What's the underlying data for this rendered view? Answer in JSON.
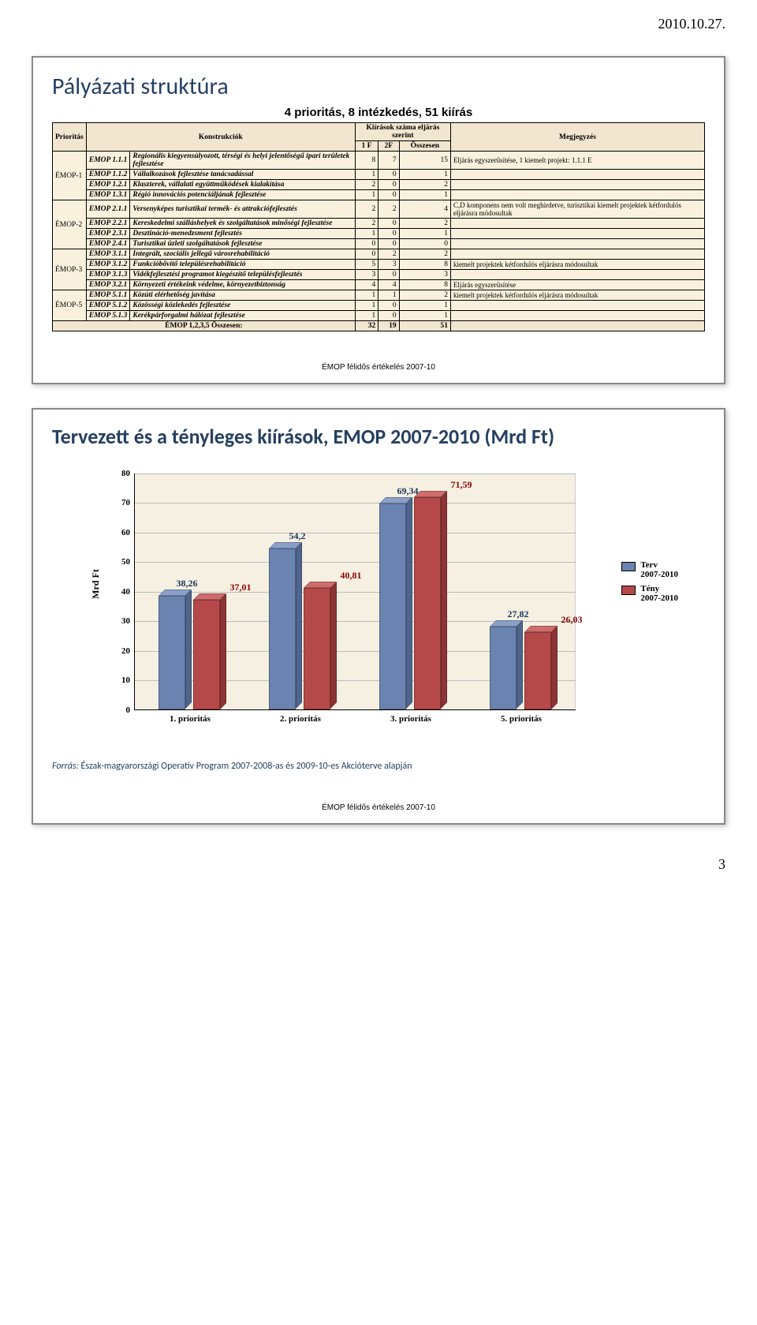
{
  "page_date": "2010.10.27.",
  "page_number": "3",
  "footer_text": "ÉMOP félidős értékelés 2007-10",
  "slide1": {
    "title": "Pályázati struktúra",
    "subtitle": "4 prioritás, 8 intézkedés, 51 kiírás",
    "headers": {
      "prioritas": "Prioritás",
      "konstrukciok": "Konstrukciók",
      "kiiras_group": "Kiírások száma eljárás szerint",
      "c1f": "1 F",
      "c2f": "2F",
      "osszesen": "Összesen",
      "megjegyzes": "Megjegyzés"
    },
    "groups": [
      {
        "prior": "ÉMOP-1",
        "rows": [
          {
            "code": "EMOP 1.1.1",
            "konst": "Regionális kiegyensúlyozott, térségi és helyi jelentőségű ipari területek fejlesztése",
            "v1": "8",
            "v2": "7",
            "sum": "15",
            "note": "Eljárás egyszerűsítése,\n1 kiemelt projekt: 1.1.1 E"
          },
          {
            "code": "EMOP 1.1.2",
            "konst": "Vállalkozások fejlesztése tanácsadással",
            "v1": "1",
            "v2": "0",
            "sum": "1",
            "note": ""
          },
          {
            "code": "EMOP 1.2.1",
            "konst": "Klaszterek, vállalati együttműködések kialakítása",
            "v1": "2",
            "v2": "0",
            "sum": "2",
            "note": ""
          },
          {
            "code": "EMOP 1.3.1",
            "konst": "Régió innovációs potenciáljának fejlesztése",
            "v1": "1",
            "v2": "0",
            "sum": "1",
            "note": ""
          }
        ]
      },
      {
        "prior": "ÉMOP-2",
        "rows": [
          {
            "code": "EMOP 2.1.1",
            "konst": "Versenyképes turisztikai termék- és attrakciófejlesztés",
            "v1": "2",
            "v2": "2",
            "sum": "4",
            "note": "C,D komponens nem volt meghirdetve, turisztikai kiemelt projektek kétfordulós eljárásra módosultak"
          },
          {
            "code": "EMOP 2.2.1",
            "konst": "Kereskedelmi szálláshelyek és szolgáltatások minőségi fejlesztése",
            "v1": "2",
            "v2": "0",
            "sum": "2",
            "note": ""
          },
          {
            "code": "EMOP 2.3.1",
            "konst": "Desztináció-menedzsment fejlesztés",
            "v1": "1",
            "v2": "0",
            "sum": "1",
            "note": ""
          },
          {
            "code": "EMOP 2.4.1",
            "konst": "Turisztikai üzleti szolgáltatások fejlesztése",
            "v1": "0",
            "v2": "0",
            "sum": "0",
            "note": ""
          }
        ]
      },
      {
        "prior": "ÉMOP-3",
        "rows": [
          {
            "code": "EMOP 3.1.1",
            "konst": "Integrált, szociális jellegű városrehabilitáció",
            "v1": "0",
            "v2": "2",
            "sum": "2",
            "note": ""
          },
          {
            "code": "EMOP 3.1.2",
            "konst": "Funkcióbővítő településrehabilitáció",
            "v1": "5",
            "v2": "3",
            "sum": "8",
            "note": "kiemelt projektek kétfordulós eljárásra módosultak"
          },
          {
            "code": "EMOP 3.1.3",
            "konst": "Vidékfejlesztési programot kiegészítő településfejlesztés",
            "v1": "3",
            "v2": "0",
            "sum": "3",
            "note": ""
          },
          {
            "code": "EMOP 3.2.1",
            "konst": "Környezeti értékeink védelme, környezetbiztonság",
            "v1": "4",
            "v2": "4",
            "sum": "8",
            "note": "Eljárás egyszerűsítése"
          }
        ]
      },
      {
        "prior": "ÉMOP-5",
        "rows": [
          {
            "code": "EMOP 5.1.1",
            "konst": "Közúti elérhetőség javítása",
            "v1": "1",
            "v2": "1",
            "sum": "2",
            "note": "kiemelt projektek kétfordulós eljárásra módosultak"
          },
          {
            "code": "EMOP 5.1.2",
            "konst": "Közösségi közlekedés fejlesztése",
            "v1": "1",
            "v2": "0",
            "sum": "1",
            "note": ""
          },
          {
            "code": "EMOP 5.1.3",
            "konst": "Kerékpárforgalmi hálózat fejlesztése",
            "v1": "1",
            "v2": "0",
            "sum": "1",
            "note": ""
          }
        ]
      }
    ],
    "total_row": {
      "label": "ÉMOP 1,2,3,5 Összesen:",
      "v1": "32",
      "v2": "19",
      "sum": "51"
    }
  },
  "slide2": {
    "title": "Tervezett és a tényleges kiírások, EMOP 2007-2010 (Mrd Ft)",
    "ylabel": "Mrd Ft",
    "ymax": 80,
    "ytick_step": 10,
    "categories": [
      "1. prioritás",
      "2. prioritás",
      "3. prioritás",
      "5. prioritás"
    ],
    "series": [
      {
        "name": "Terv 2007-2010",
        "color": "#6b83b0",
        "top": "#8aa0c8",
        "side": "#4f658e",
        "label_color": "#16365c",
        "values": [
          38.26,
          54.2,
          69.34,
          27.82
        ]
      },
      {
        "name": "Tény 2007-2010",
        "color": "#b54848",
        "top": "#cf6d6d",
        "side": "#8e3434",
        "label_color": "#8b0000",
        "values": [
          37.01,
          40.81,
          71.59,
          26.03
        ]
      }
    ],
    "background_color": "#f6f0e2",
    "grid_color": "#bbbbbb",
    "source_label": "Forrás:",
    "source_text": " Észak-magyarországi Operatív Program 2007-2008-as és 2009-10-es Akcióterve alapján"
  }
}
